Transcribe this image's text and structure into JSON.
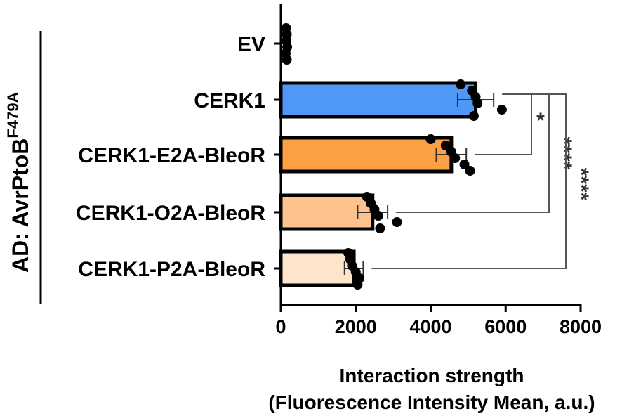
{
  "chart_data": {
    "type": "bar",
    "orientation": "horizontal",
    "categories": [
      "EV",
      "CERK1",
      "CERK1-E2A-BleoR",
      "CERK1-O2A-BleoR",
      "CERK1-P2A-BleoR"
    ],
    "values": [
      150,
      5200,
      4550,
      2450,
      1950
    ],
    "errors": [
      20,
      480,
      400,
      400,
      250
    ],
    "points": [
      [
        140,
        160,
        150,
        170,
        130,
        160
      ],
      [
        4800,
        5100,
        5200,
        5250,
        5900,
        5150
      ],
      [
        4000,
        4400,
        4550,
        4650,
        4900,
        5050
      ],
      [
        2300,
        2400,
        2500,
        2600,
        3100,
        2650
      ],
      [
        1800,
        1850,
        1900,
        2000,
        2100,
        2050
      ]
    ],
    "colors": [
      "#ffffff",
      "#4f98f6",
      "#fd9f43",
      "#fcc38f",
      "#fee4cb"
    ],
    "xlim": [
      0,
      8000
    ],
    "xticks": [
      0,
      2000,
      4000,
      6000,
      8000
    ],
    "xtick_labels": [
      "0",
      "2000",
      "4000",
      "6000",
      "8000"
    ],
    "xlabel_line1": "Interaction strength",
    "xlabel_line2": "(Fluorescence Intensity Mean, a.u.)",
    "group_label_main": "AD: AvrPtoB",
    "group_label_sup": "F479A",
    "significance": [
      {
        "from": 1,
        "to": 2,
        "label": "*"
      },
      {
        "from": 1,
        "to": 3,
        "label": "****"
      },
      {
        "from": 1,
        "to": 4,
        "label": "****"
      }
    ]
  }
}
